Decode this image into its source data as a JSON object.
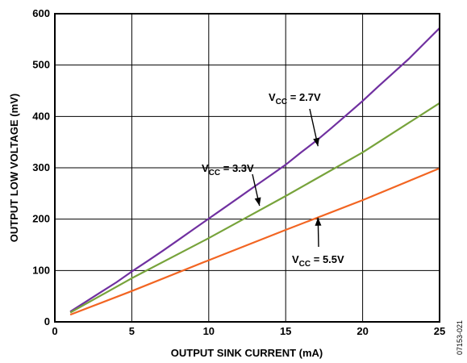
{
  "chart_data": {
    "type": "line",
    "xlabel": "OUTPUT SINK CURRENT (mA)",
    "ylabel": "OUTPUT LOW VOLTAGE (mV)",
    "xlim": [
      0,
      25
    ],
    "ylim": [
      0,
      600
    ],
    "xticks": [
      "0",
      "5",
      "10",
      "15",
      "20",
      "25"
    ],
    "yticks": [
      "0",
      "100",
      "200",
      "300",
      "400",
      "500",
      "600"
    ],
    "grid": true,
    "series": [
      {
        "name": "V_CC = 2.7V",
        "color": "#7030a0",
        "x": [
          1,
          2,
          3,
          4,
          5,
          6,
          7,
          8,
          9,
          10,
          11,
          12,
          13,
          14,
          15,
          16,
          17,
          18,
          19,
          20,
          21,
          22,
          23,
          24,
          25
        ],
        "y": [
          20,
          39,
          58,
          77,
          98,
          118,
          138,
          159,
          180,
          201,
          222,
          243,
          264,
          285,
          306,
          330,
          353,
          378,
          404,
          430,
          458,
          485,
          512,
          542,
          572
        ]
      },
      {
        "name": "V_CC = 3.3V",
        "color": "#77a33b",
        "x": [
          1,
          5,
          10,
          15,
          20,
          25
        ],
        "y": [
          18,
          85,
          163,
          245,
          330,
          426
        ]
      },
      {
        "name": "V_CC = 5.5V",
        "color": "#f26522",
        "x": [
          1,
          5,
          10,
          15,
          20,
          25
        ],
        "y": [
          14,
          60,
          120,
          179,
          237,
          299
        ]
      }
    ],
    "annotations": [
      {
        "main": "V",
        "sub": "CC",
        "rest": " = 2.7V"
      },
      {
        "main": "V",
        "sub": "CC",
        "rest": " = 3.3V"
      },
      {
        "main": "V",
        "sub": "CC",
        "rest": " = 5.5V"
      }
    ]
  },
  "figure_id": "07153-021"
}
